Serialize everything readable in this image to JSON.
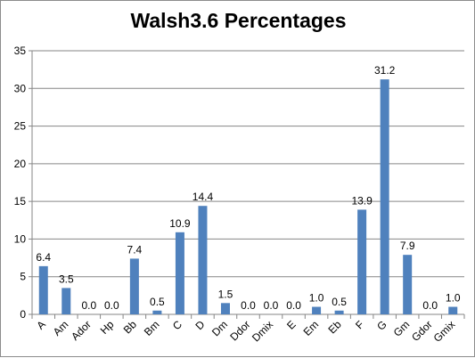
{
  "chart_data": {
    "type": "bar",
    "title": "Walsh3.6 Percentages",
    "xlabel": "",
    "ylabel": "",
    "categories": [
      "A",
      "Am",
      "Ador",
      "Hp",
      "Bb",
      "Bm",
      "C",
      "D",
      "Dm",
      "Ddor",
      "Dmix",
      "E",
      "Em",
      "Eb",
      "F",
      "G",
      "Gm",
      "Gdor",
      "Gmix"
    ],
    "values": [
      6.4,
      3.5,
      0.0,
      0.0,
      7.4,
      0.5,
      10.9,
      14.4,
      1.5,
      0.0,
      0.0,
      0.0,
      1.0,
      0.5,
      13.9,
      31.2,
      7.9,
      0.0,
      1.0
    ],
    "data_labels": [
      "6.4",
      "3.5",
      "0.0",
      "0.0",
      "7.4",
      "0.5",
      "10.9",
      "14.4",
      "1.5",
      "0.0",
      "0.0",
      "0.0",
      "1.0",
      "0.5",
      "13.9",
      "31.2",
      "7.9",
      "0.0",
      "1.0"
    ],
    "ylim": [
      0,
      35
    ],
    "yticks": [
      0,
      5,
      10,
      15,
      20,
      25,
      30,
      35
    ],
    "ytick_labels": [
      "0",
      "5",
      "10",
      "15",
      "20",
      "25",
      "30",
      "35"
    ],
    "grid": true,
    "legend": "none",
    "bar_color": "#4f81bd",
    "grid_color": "#868686"
  }
}
